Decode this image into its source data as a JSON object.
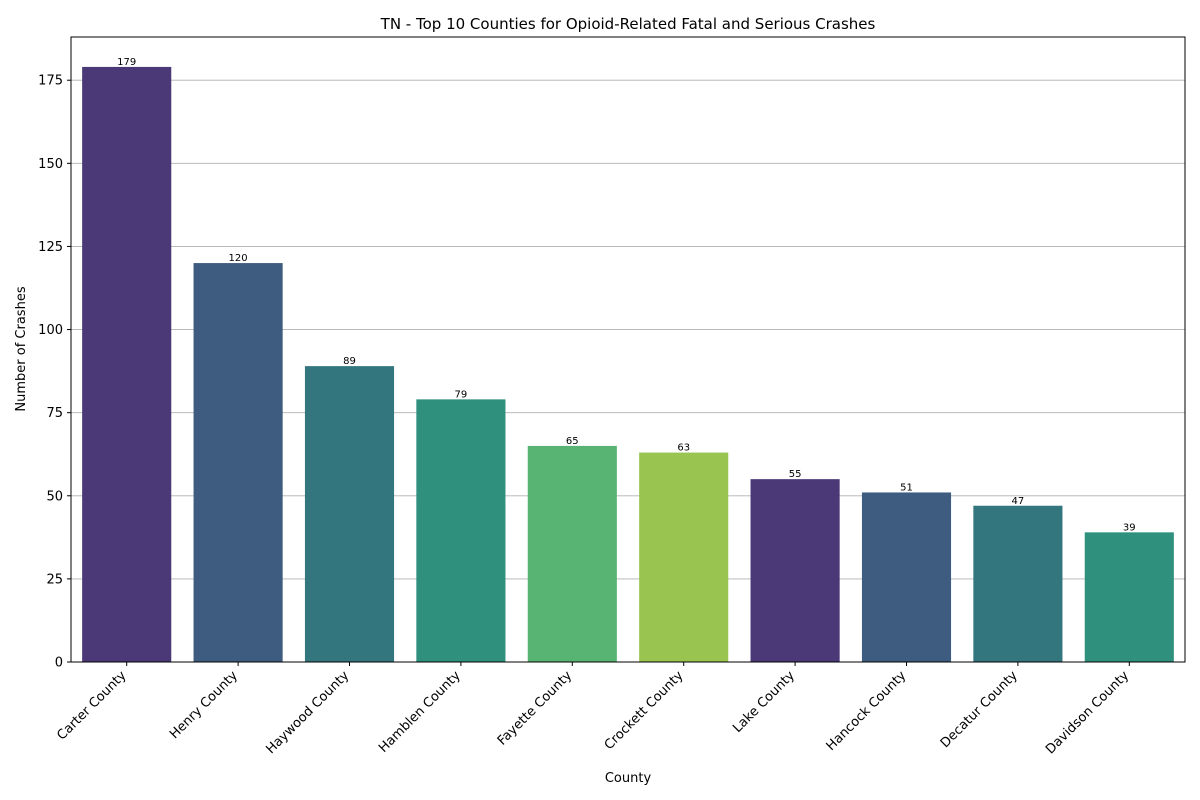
{
  "chart_data": {
    "type": "bar",
    "title": "TN - Top 10 Counties for Opioid-Related Fatal and Serious Crashes",
    "xlabel": "County",
    "ylabel": "Number of Crashes",
    "categories": [
      "Carter County",
      "Henry County",
      "Haywood County",
      "Hamblen County",
      "Fayette County",
      "Crockett County",
      "Lake County",
      "Hancock County",
      "Decatur County",
      "Davidson County"
    ],
    "values": [
      179,
      120,
      89,
      79,
      65,
      63,
      55,
      51,
      47,
      39
    ],
    "colors": [
      "#4a3976",
      "#3e5c80",
      "#33767e",
      "#2e907d",
      "#58b473",
      "#99c44f",
      "#4a3976",
      "#3e5c80",
      "#33767e",
      "#2e907d"
    ],
    "ylim": [
      0,
      188
    ],
    "yticks": [
      0,
      25,
      50,
      75,
      100,
      125,
      150,
      175
    ],
    "grid": "y",
    "legend": "none"
  }
}
